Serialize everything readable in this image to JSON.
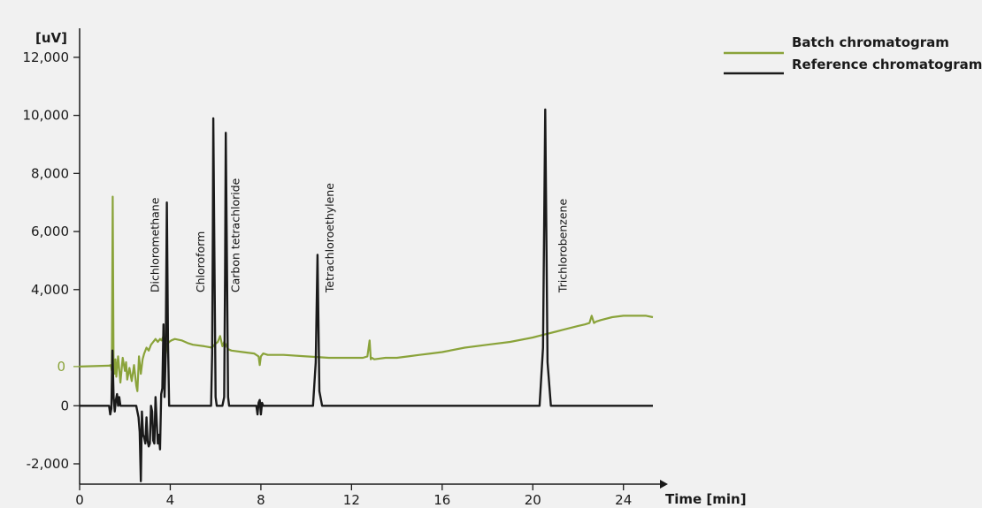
{
  "chart_data": {
    "type": "line",
    "ylabel": "[uV]",
    "xlabel": "Time [min]",
    "xlim": [
      0,
      25.3
    ],
    "ylim": [
      -2700,
      13000
    ],
    "x_ticks": [
      0,
      4,
      8,
      12,
      16,
      20,
      24
    ],
    "y_ticks": [
      12000,
      10000,
      8000,
      6000,
      4000,
      0,
      -2000
    ],
    "y_tick_labels": [
      "12,000",
      "10,000",
      "8,000",
      "6,000",
      "4,000",
      "0",
      "-2,000"
    ],
    "batch_zero_label": "0",
    "grid": false,
    "legend_position": "top-right",
    "colors": {
      "batch": "#8aa33a",
      "reference": "#1a1a1a",
      "axis": "#1a1a1a"
    },
    "series": [
      {
        "name": "Batch chromatogram",
        "color": "#8aa33a",
        "x": [
          0,
          1.3,
          1.38,
          1.42,
          1.46,
          1.5,
          1.54,
          1.58,
          1.62,
          1.7,
          1.8,
          1.9,
          2.0,
          2.05,
          2.1,
          2.2,
          2.3,
          2.4,
          2.5,
          2.55,
          2.62,
          2.7,
          2.78,
          2.85,
          2.95,
          3.05,
          3.15,
          3.25,
          3.35,
          3.45,
          3.55,
          3.62,
          3.7,
          3.78,
          3.85,
          3.9,
          3.95,
          4.05,
          4.2,
          4.5,
          4.8,
          5.0,
          5.5,
          5.85,
          5.95,
          6.1,
          6.2,
          6.3,
          6.38,
          6.45,
          6.55,
          6.7,
          7.2,
          7.7,
          7.9,
          7.95,
          8.0,
          8.1,
          8.3,
          8.6,
          9.0,
          10.0,
          11.0,
          12.0,
          12.5,
          12.7,
          12.8,
          12.85,
          12.9,
          13.0,
          13.5,
          14.0,
          14.5,
          15.0,
          15.5,
          16.0,
          17.0,
          18.0,
          19.0,
          20.0,
          20.5,
          21.0,
          21.5,
          22.0,
          22.3,
          22.5,
          22.6,
          22.7,
          22.8,
          23.0,
          23.5,
          24.0,
          24.5,
          25.0,
          25.3
        ],
        "y": [
          1350,
          1380,
          1400,
          1200,
          7200,
          1200,
          1100,
          1600,
          1000,
          1700,
          800,
          1650,
          1200,
          1500,
          900,
          1300,
          850,
          1400,
          700,
          500,
          1700,
          1100,
          1600,
          1800,
          2000,
          1900,
          2100,
          2200,
          2300,
          2200,
          2300,
          2250,
          2400,
          1600,
          2100,
          2150,
          2200,
          2250,
          2300,
          2250,
          2150,
          2100,
          2050,
          2000,
          2100,
          2200,
          2400,
          2050,
          2200,
          2100,
          1950,
          1900,
          1850,
          1800,
          1700,
          1400,
          1700,
          1800,
          1750,
          1750,
          1750,
          1700,
          1650,
          1650,
          1650,
          1700,
          2250,
          1600,
          1650,
          1600,
          1650,
          1650,
          1700,
          1750,
          1800,
          1850,
          2000,
          2100,
          2200,
          2350,
          2450,
          2550,
          2650,
          2750,
          2800,
          2850,
          3100,
          2850,
          2900,
          2950,
          3050,
          3100,
          3100,
          3100,
          3050
        ]
      },
      {
        "name": "Reference chromatogram",
        "color": "#1a1a1a",
        "x": [
          0,
          1.2,
          1.3,
          1.35,
          1.4,
          1.45,
          1.5,
          1.55,
          1.6,
          1.65,
          1.7,
          1.75,
          1.8,
          1.9,
          2.0,
          2.5,
          2.6,
          2.65,
          2.7,
          2.75,
          2.8,
          2.85,
          2.9,
          2.95,
          3.0,
          3.05,
          3.1,
          3.15,
          3.2,
          3.25,
          3.3,
          3.35,
          3.45,
          3.5,
          3.55,
          3.6,
          3.65,
          3.7,
          3.75,
          3.8,
          3.85,
          3.9,
          3.95,
          4.0,
          4.05,
          4.1,
          4.2,
          5.5,
          5.8,
          5.85,
          5.88,
          5.9,
          5.95,
          6.0,
          6.05,
          6.1,
          6.3,
          6.38,
          6.42,
          6.45,
          6.5,
          6.55,
          6.6,
          6.8,
          7.8,
          7.85,
          7.9,
          7.95,
          8.0,
          8.05,
          8.1,
          8.2,
          10.3,
          10.42,
          10.5,
          10.58,
          10.7,
          20.3,
          20.45,
          20.55,
          20.65,
          20.8,
          25.3
        ],
        "y": [
          0,
          0,
          0,
          -300,
          -100,
          1900,
          300,
          -200,
          200,
          400,
          0,
          300,
          0,
          0,
          0,
          0,
          -400,
          -900,
          -2600,
          -200,
          -1000,
          -1100,
          -1300,
          -400,
          -1200,
          -1400,
          -1300,
          0,
          -200,
          -1200,
          -1300,
          300,
          -1300,
          -1000,
          -1500,
          400,
          600,
          2800,
          300,
          1800,
          7000,
          2200,
          0,
          0,
          0,
          0,
          0,
          0,
          0,
          1800,
          6000,
          9900,
          5000,
          300,
          0,
          0,
          0,
          300,
          4400,
          9400,
          5000,
          300,
          0,
          0,
          0,
          -300,
          100,
          200,
          -300,
          100,
          0,
          0,
          0,
          1500,
          5200,
          500,
          0,
          0,
          2000,
          10200,
          1500,
          0,
          0
        ]
      }
    ],
    "annotations": [
      {
        "text": "Dichloromethane",
        "x": 3.5,
        "y": 3900
      },
      {
        "text": "Chloroform",
        "x": 5.5,
        "y": 3900
      },
      {
        "text": "Carbon tetrachloride",
        "x": 7.05,
        "y": 3900
      },
      {
        "text": "Tetrachloroethylene",
        "x": 11.2,
        "y": 3900
      },
      {
        "text": "Trichlorobenzene",
        "x": 21.5,
        "y": 3900
      }
    ]
  }
}
